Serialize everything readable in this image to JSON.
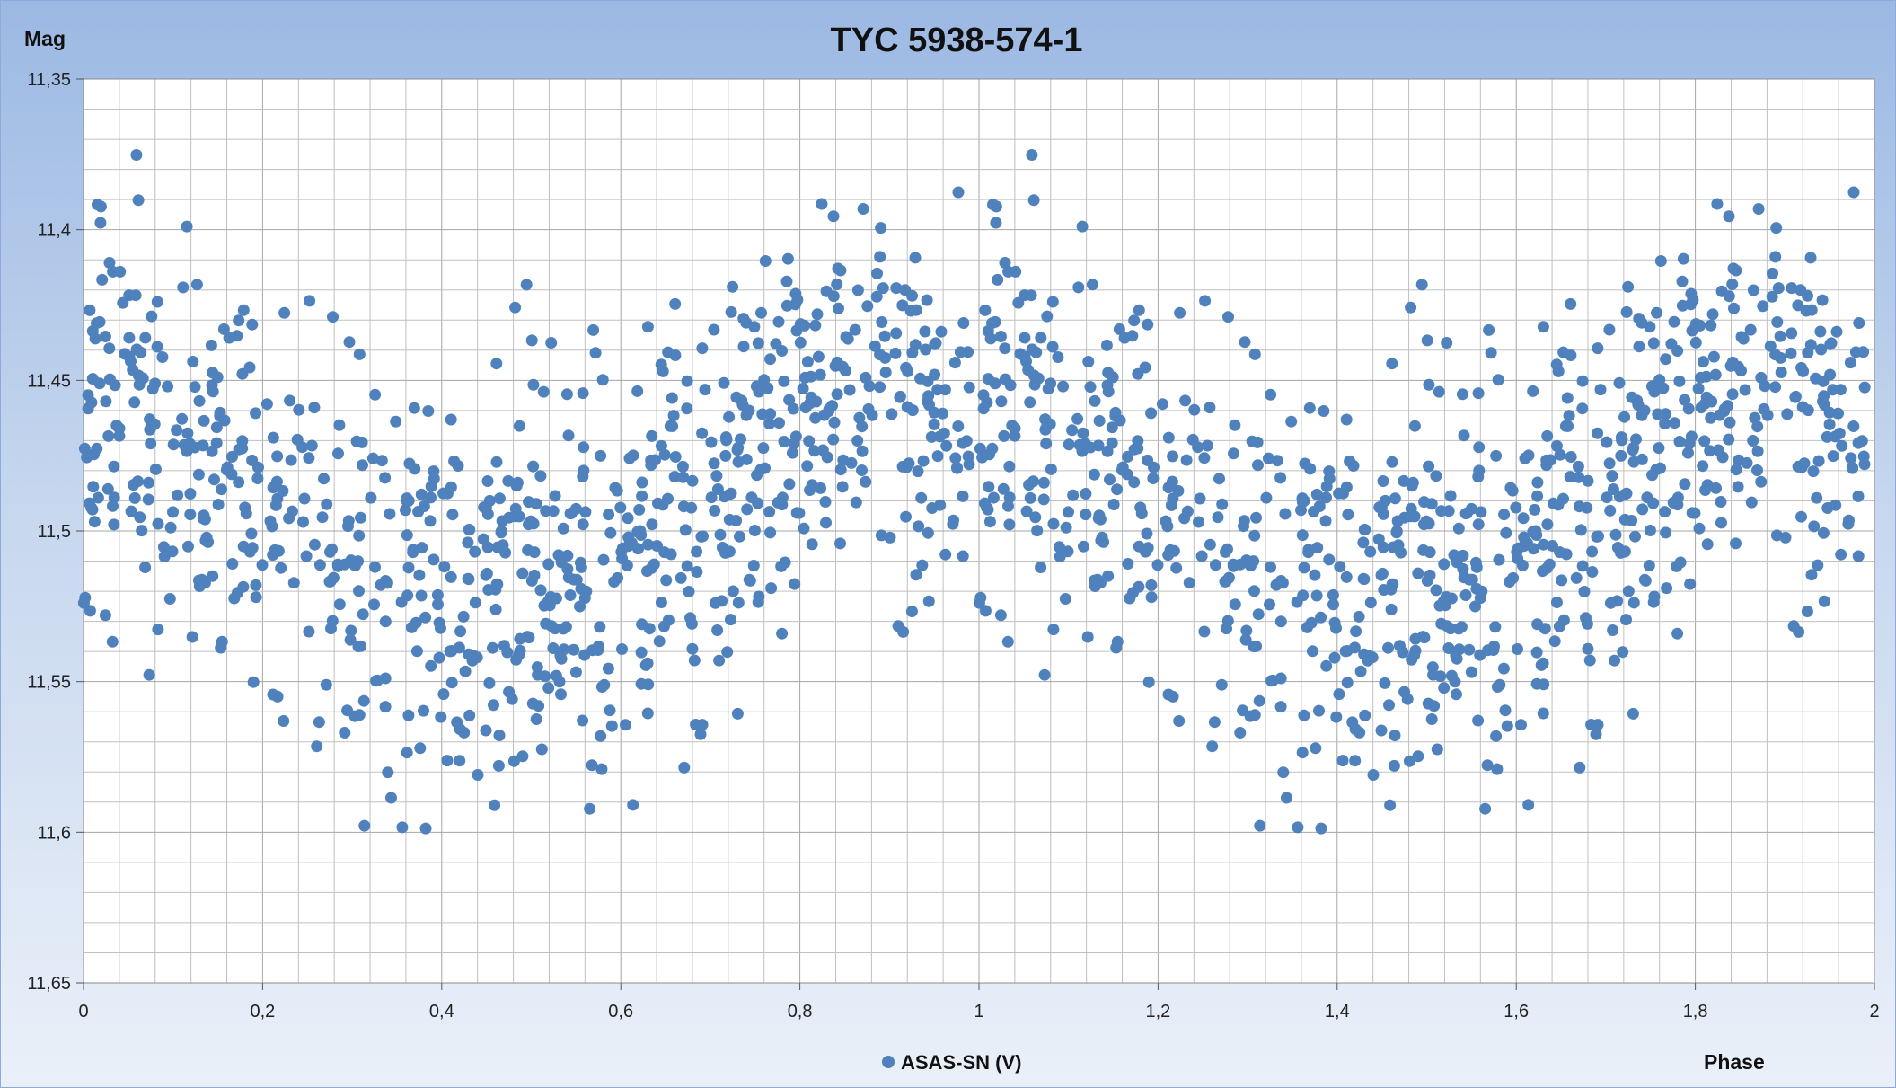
{
  "chart_data": {
    "type": "scatter",
    "title": "TYC 5938-574-1",
    "xlabel": "Phase",
    "ylabel": "Mag",
    "xlim": [
      0,
      2
    ],
    "ylim": [
      11.35,
      11.65
    ],
    "y_inverted": true,
    "x_ticks": [
      "0",
      "0,2",
      "0,4",
      "0,6",
      "0,8",
      "1",
      "1,2",
      "1,4",
      "1,6",
      "1,8",
      "2"
    ],
    "y_ticks": [
      "11,35",
      "11,4",
      "11,45",
      "11,5",
      "11,55",
      "11,6",
      "11,65"
    ],
    "grid": true,
    "legend": {
      "position": "bottom-center",
      "entries": [
        "ASAS-SN (V)"
      ]
    },
    "colors": {
      "series": "#4f81bd",
      "grid": "#c0c0c0",
      "header": "#9cb9e3"
    },
    "series": [
      {
        "name": "ASAS-SN (V)",
        "phase": [
          0.0,
          0.01,
          0.015,
          0.02,
          0.025,
          0.03,
          0.04,
          0.05,
          0.055,
          0.06,
          0.065,
          0.07,
          0.08,
          0.09,
          0.1,
          0.11,
          0.12,
          0.13,
          0.14,
          0.15,
          0.16,
          0.165,
          0.17,
          0.18,
          0.19,
          0.2,
          0.21,
          0.22,
          0.23,
          0.24,
          0.245,
          0.25,
          0.26,
          0.27,
          0.28,
          0.29,
          0.3,
          0.31,
          0.32,
          0.33,
          0.34,
          0.35,
          0.36,
          0.365,
          0.37,
          0.38,
          0.39,
          0.4,
          0.41,
          0.42,
          0.425,
          0.43,
          0.44,
          0.45,
          0.46,
          0.47,
          0.48,
          0.49,
          0.5,
          0.51,
          0.52,
          0.53,
          0.54,
          0.55,
          0.56,
          0.565,
          0.57,
          0.58,
          0.59,
          0.6,
          0.61,
          0.62,
          0.63,
          0.64,
          0.65,
          0.66,
          0.67,
          0.68,
          0.69,
          0.7,
          0.71,
          0.72,
          0.73,
          0.74,
          0.75,
          0.76,
          0.77,
          0.78,
          0.79,
          0.8,
          0.81,
          0.82,
          0.83,
          0.84,
          0.85,
          0.86,
          0.87,
          0.88,
          0.89,
          0.9,
          0.91,
          0.92,
          0.93,
          0.94,
          0.95,
          0.96,
          0.97,
          0.98,
          0.99
        ],
        "mag_mean": [
          11.485,
          11.47,
          11.45,
          11.45,
          11.455,
          11.455,
          11.46,
          11.47,
          11.44,
          11.445,
          11.47,
          11.47,
          11.475,
          11.475,
          11.48,
          11.465,
          11.465,
          11.47,
          11.475,
          11.48,
          11.47,
          11.485,
          11.48,
          11.49,
          11.495,
          11.49,
          11.495,
          11.5,
          11.49,
          11.49,
          11.495,
          11.49,
          11.5,
          11.505,
          11.5,
          11.5,
          11.5,
          11.51,
          11.51,
          11.53,
          11.52,
          11.51,
          11.52,
          11.525,
          11.52,
          11.525,
          11.52,
          11.525,
          11.515,
          11.525,
          11.54,
          11.525,
          11.51,
          11.515,
          11.52,
          11.515,
          11.51,
          11.52,
          11.51,
          11.52,
          11.525,
          11.53,
          11.515,
          11.51,
          11.52,
          11.525,
          11.515,
          11.51,
          11.515,
          11.505,
          11.515,
          11.51,
          11.52,
          11.51,
          11.5,
          11.495,
          11.505,
          11.5,
          11.495,
          11.49,
          11.495,
          11.49,
          11.48,
          11.475,
          11.47,
          11.48,
          11.47,
          11.47,
          11.465,
          11.465,
          11.46,
          11.47,
          11.455,
          11.45,
          11.455,
          11.46,
          11.455,
          11.455,
          11.45,
          11.455,
          11.45,
          11.46,
          11.455,
          11.45,
          11.46,
          11.465,
          11.46,
          11.46,
          11.465
        ],
        "mag_spread": 0.032,
        "count_per_cycle": 860
      }
    ]
  }
}
